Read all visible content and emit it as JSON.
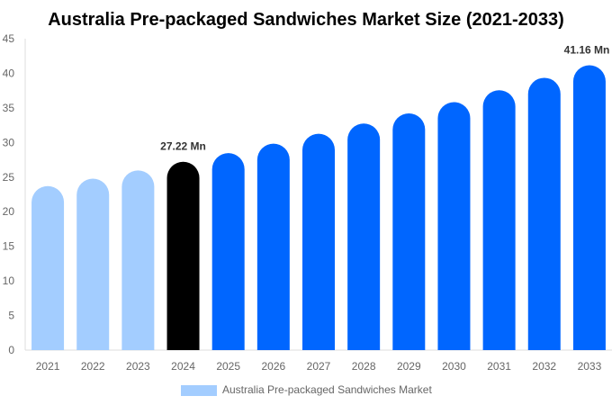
{
  "chart_data": {
    "type": "bar",
    "title": "Australia Pre-packaged Sandwiches Market Size (2021-2033)",
    "categories": [
      "2021",
      "2022",
      "2023",
      "2024",
      "2025",
      "2026",
      "2027",
      "2028",
      "2029",
      "2030",
      "2031",
      "2032",
      "2033"
    ],
    "series": [
      {
        "name": "Australia Pre-packaged Sandwiches Market",
        "values": [
          23.7,
          24.78,
          25.96,
          27.22,
          28.47,
          29.83,
          31.26,
          32.74,
          34.21,
          35.83,
          37.56,
          39.35,
          41.16
        ]
      }
    ],
    "data_labels": [
      {
        "category": "2024",
        "text": "27.22 Mn"
      },
      {
        "category": "2033",
        "text": "41.16 Mn"
      }
    ],
    "yticks": [
      0,
      5,
      10,
      15,
      20,
      25,
      30,
      35,
      40,
      45
    ],
    "ylim": [
      0,
      45
    ],
    "xlabel": "",
    "ylabel": "",
    "grid": false,
    "legend_position": "bottom",
    "colors": {
      "historical": "#a3cdff",
      "base_year": "#000000",
      "forecast": "#0066ff",
      "legend": "#a3cdff"
    }
  }
}
